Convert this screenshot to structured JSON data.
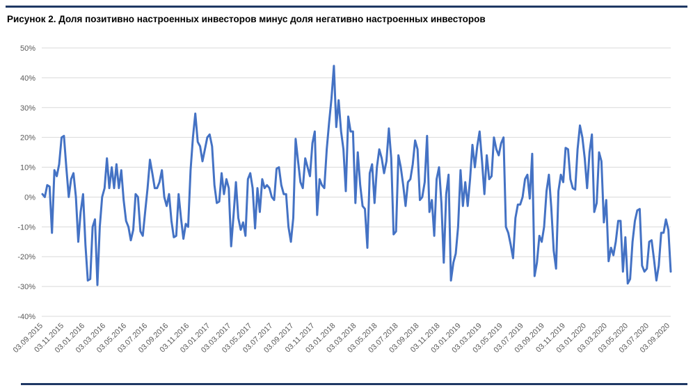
{
  "page": {
    "title": "Рисунок 2. Доля позитивно настроенных инвесторов минус доля негативно настроенных инвесторов"
  },
  "colors": {
    "rule": "#1f3864",
    "line": "#4472c4",
    "grid": "#d9d9d9"
  },
  "chart_data": {
    "type": "line",
    "title": "Рисунок 2. Доля позитивно настроенных инвесторов минус доля негативно настроенных инвесторов",
    "xlabel": "",
    "ylabel": "",
    "ylim": [
      -40,
      50
    ],
    "y_unit": "%",
    "y_ticks": [
      50,
      40,
      30,
      20,
      10,
      0,
      -10,
      -20,
      -30,
      -40
    ],
    "y_tick_labels": [
      "50%",
      "40%",
      "30%",
      "20%",
      "10%",
      "0%",
      "-10%",
      "-20%",
      "-30%",
      "-40%"
    ],
    "x_tick_labels": [
      "03.09.2015",
      "03.11.2015",
      "03.01.2016",
      "03.03.2016",
      "03.05.2016",
      "03.07.2016",
      "03.09.2016",
      "03.11.2016",
      "03.01.2017",
      "03.03.2017",
      "03.05.2017",
      "03.07.2017",
      "03.09.2017",
      "03.11.2017",
      "03.01.2018",
      "03.03.2018",
      "03.05.2018",
      "03.07.2018",
      "03.09.2018",
      "03.11.2018",
      "03.01.2019",
      "03.03.2019",
      "03.05.2019",
      "03.07.2019",
      "03.09.2019",
      "03.11.2019",
      "03.01.2020",
      "03.03.2020",
      "03.05.2020",
      "03.07.2020",
      "03.09.2020"
    ],
    "grid": true,
    "legend": "none",
    "series": [
      {
        "values": [
          1,
          0,
          4,
          3.5,
          -12,
          9,
          7,
          11,
          20,
          20.5,
          10,
          0,
          6,
          8,
          0,
          -15,
          -5,
          1,
          -16,
          -28,
          -27.5,
          -10,
          -7.5,
          -29.5,
          -10,
          0,
          3,
          13,
          3,
          10,
          3,
          11,
          3,
          9,
          -1,
          -8,
          -10,
          -14.5,
          -11,
          1,
          0,
          -11.5,
          -13,
          -5,
          3,
          12.5,
          8,
          3,
          3,
          5,
          9,
          0,
          -3,
          1,
          -8,
          -13.5,
          -13,
          1,
          -7,
          -14,
          -9,
          -10,
          9,
          20,
          28,
          18.5,
          17,
          12,
          16,
          20,
          21,
          17,
          4,
          -2,
          -1.5,
          8,
          1,
          6,
          3,
          -16.5,
          -6,
          5,
          -7,
          -11,
          -8.5,
          -13,
          6,
          8,
          3,
          -10.5,
          3,
          -5,
          6,
          3,
          4,
          3,
          0,
          -1,
          9.5,
          10,
          4,
          1,
          1,
          -10,
          -15,
          -7,
          19.5,
          12,
          5,
          3,
          13,
          10,
          7,
          18,
          22,
          -6,
          6,
          4,
          3,
          16,
          25,
          33,
          44,
          23.5,
          32.5,
          22,
          16,
          2,
          27,
          22,
          22,
          -2,
          15,
          4,
          -3,
          -4,
          -17,
          8,
          11,
          -2,
          10,
          16,
          13,
          8,
          12,
          23,
          13,
          -12.5,
          -11.5,
          14,
          10,
          4,
          -3,
          5,
          6,
          11,
          19,
          16,
          -1,
          0,
          5,
          20.5,
          -5,
          -1,
          -13,
          6,
          10,
          -2,
          -22,
          1,
          7.5,
          -28,
          -22,
          -19,
          -10,
          9,
          -3,
          5,
          -3,
          6,
          17.5,
          10,
          17,
          22,
          12,
          1,
          14,
          6,
          7,
          20,
          16,
          14,
          18,
          20,
          -10,
          -12,
          -16,
          -20.5,
          -7,
          -2.5,
          -2.5,
          0,
          6,
          7.5,
          -0.5,
          14.5,
          -26.5,
          -22,
          -13,
          -15,
          -10,
          2,
          7.5,
          -3.5,
          -18,
          -24,
          2,
          7.5,
          5,
          16.5,
          16,
          6,
          3,
          2.5,
          16,
          24,
          20,
          13,
          3,
          15,
          21,
          -5,
          -2,
          15,
          12,
          -8.5,
          -1,
          -21.5,
          -17,
          -19.5,
          -15,
          -8,
          -8,
          -25,
          -13.5,
          -29,
          -27.5,
          -15,
          -8,
          -4.5,
          -4,
          -23,
          -25,
          -24,
          -15,
          -14.5,
          -21,
          -28,
          -23,
          -12,
          -12,
          -7.5,
          -11,
          -25
        ]
      }
    ]
  }
}
